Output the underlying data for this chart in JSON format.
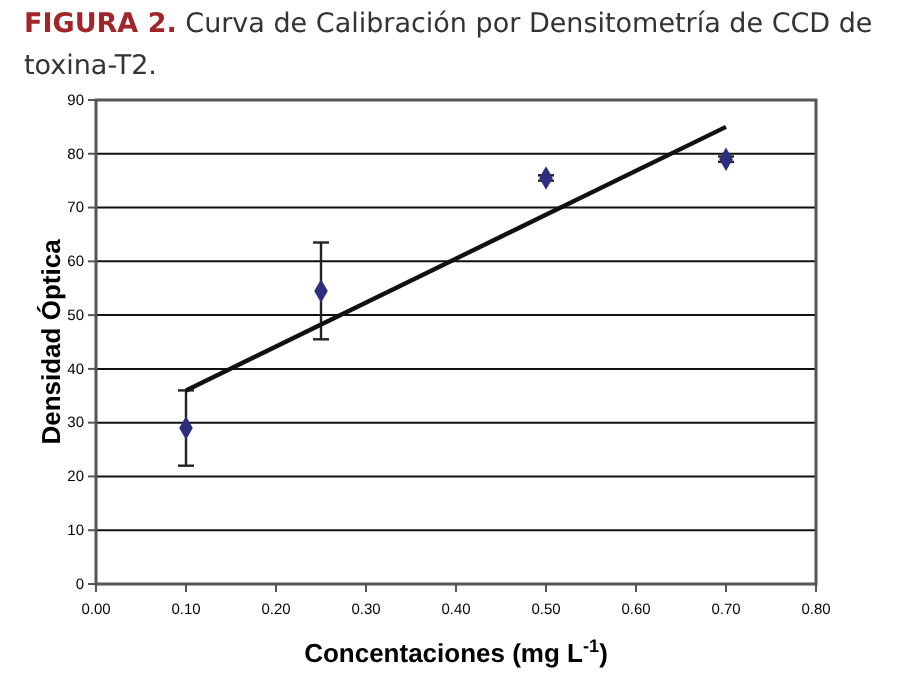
{
  "chart_data": {
    "type": "scatter",
    "title": "FIGURA 2. Curva de Calibración por Densitometría de CCD de toxina-T2.",
    "xlabel": "Concentaciones (mg L$^{-1}$)",
    "ylabel": "Densidad Óptica",
    "xlim": [
      0,
      0.8
    ],
    "xticks": [
      {
        "value": 0,
        "label": "0.00"
      },
      {
        "value": 0.1,
        "label": "0.10"
      },
      {
        "value": 0.2,
        "label": "0.20"
      },
      {
        "value": 0.3,
        "label": "0.30"
      },
      {
        "value": 0.4,
        "label": "0.40"
      },
      {
        "value": 0.5,
        "label": "0.50"
      },
      {
        "value": 0.6,
        "label": "0.60"
      },
      {
        "value": 0.7,
        "label": "0.70"
      },
      {
        "value": 0.8,
        "label": "0.80"
      }
    ],
    "ylim": [
      0,
      90
    ],
    "yticks": [
      0,
      10,
      20,
      30,
      40,
      50,
      60,
      70,
      80,
      90
    ],
    "grid": "y",
    "series": [
      {
        "color": "#2e2e7e",
        "marker": "diamond",
        "x": [
          0.1,
          0.25,
          0.5,
          0.7
        ],
        "values": [
          29,
          54.5,
          75.5,
          79
        ],
        "errors": [
          [
            22,
            36
          ],
          [
            45.5,
            63.5
          ],
          [
            75,
            76
          ],
          [
            78.5,
            79.5
          ]
        ]
      },
      {
        "type": "line",
        "color": "#111111",
        "marker": "none",
        "line_style": "solid",
        "x": [
          0.1,
          0.7
        ],
        "values": [
          36,
          85
        ]
      }
    ]
  }
}
